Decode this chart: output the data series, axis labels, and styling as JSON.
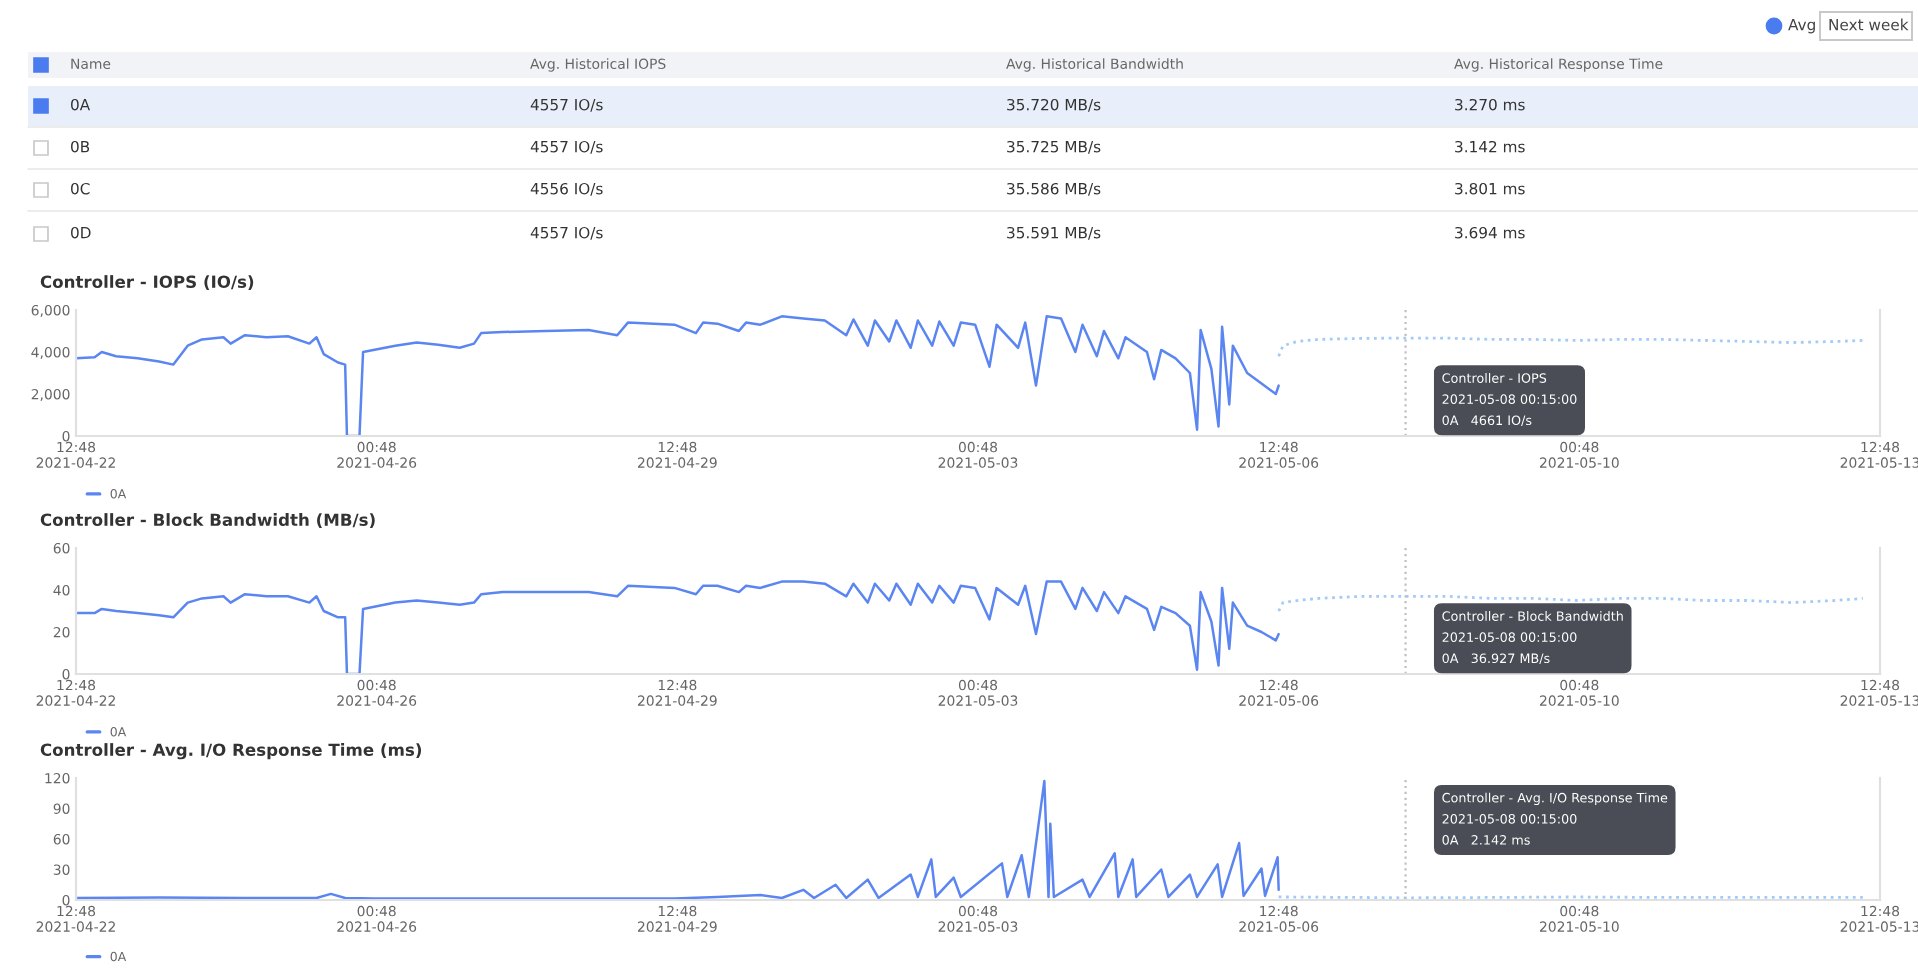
{
  "chart_data": [
    {
      "type": "other",
      "annotations": [
        "Avg",
        "Next week",
        "Name",
        "Avg. Historical IOPS",
        "Avg. Historical Bandwidth",
        "Avg. Historical Response Time",
        "0A",
        "4557 IO/s",
        "35.720 MB/s",
        "3.270 ms",
        "0B",
        "4557 IO/s",
        "35.725 MB/s",
        "3.142 ms",
        "0C",
        "4556 IO/s",
        "35.586 MB/s",
        "3.801 ms",
        "0D",
        "4557 IO/s",
        "35.591 MB/s",
        "3.694 ms"
      ]
    },
    {
      "type": "line",
      "title": "Controller - IOPS (IO/s)",
      "xlim": [
        "2021-04-22T12:48",
        "2021-05-13T12:48"
      ],
      "xticks": [
        {
          "value": "2021-04-22T12:48",
          "label": "12:48\n2021-04-22"
        },
        {
          "value": "2021-04-26T00:48",
          "label": "00:48\n2021-04-26"
        },
        {
          "value": "2021-04-29T12:48",
          "label": "12:48\n2021-04-29"
        },
        {
          "value": "2021-05-03T00:48",
          "label": "00:48\n2021-05-03"
        },
        {
          "value": "2021-05-06T12:48",
          "label": "12:48\n2021-05-06"
        },
        {
          "value": "2021-05-10T00:48",
          "label": "00:48\n2021-05-10"
        },
        {
          "value": "2021-05-13T12:48",
          "label": "12:48\n2021-05-13"
        }
      ],
      "ylim": [
        0,
        6000
      ],
      "yticks": [
        0,
        {
          "value": 2000,
          "label": "2,000"
        },
        {
          "value": 4000,
          "label": "4,000"
        },
        {
          "value": 6000,
          "label": "6,000"
        }
      ],
      "grid": false,
      "legend": "bottom left",
      "marker": "none",
      "ref_lines": [
        {
          "axis": "x",
          "value": "2021-05-08T00:15",
          "color": "#c0c0c0",
          "line_style": "dotted"
        }
      ],
      "annotations": [
        "Controller - IOPS\n2021-05-08 00:15:00\n0A   4661 IO/s"
      ],
      "series": [
        {
          "name": "0A",
          "color": "#5b86f2",
          "line_style": "solid",
          "x": [
            "2021-04-22T12:48",
            "2021-04-22T18:00",
            "2021-04-22T20:00",
            "2021-04-23T00:00",
            "2021-04-23T06:00",
            "2021-04-23T12:00",
            "2021-04-23T16:00",
            "2021-04-23T20:00",
            "2021-04-24T00:00",
            "2021-04-24T06:00",
            "2021-04-24T08:00",
            "2021-04-24T12:00",
            "2021-04-24T18:00",
            "2021-04-25T00:00",
            "2021-04-25T06:00",
            "2021-04-25T08:00",
            "2021-04-25T10:00",
            "2021-04-25T14:00",
            "2021-04-25T16:00",
            "2021-04-25T16:30",
            "2021-04-25T20:00",
            "2021-04-25T21:00",
            "2021-04-26T06:00",
            "2021-04-26T12:00",
            "2021-04-26T18:00",
            "2021-04-27T00:00",
            "2021-04-27T04:00",
            "2021-04-27T06:00",
            "2021-04-27T12:00",
            "2021-04-28T00:00",
            "2021-04-28T12:00",
            "2021-04-28T20:00",
            "2021-04-28T23:00",
            "2021-04-29T12:00",
            "2021-04-29T18:00",
            "2021-04-29T20:00",
            "2021-04-30T00:00",
            "2021-04-30T06:00",
            "2021-04-30T08:00",
            "2021-04-30T12:00",
            "2021-04-30T18:00",
            "2021-05-01T00:00",
            "2021-05-01T06:00",
            "2021-05-01T12:00",
            "2021-05-01T14:00",
            "2021-05-01T18:00",
            "2021-05-01T20:00",
            "2021-05-02T00:00",
            "2021-05-02T02:00",
            "2021-05-02T06:00",
            "2021-05-02T08:00",
            "2021-05-02T12:00",
            "2021-05-02T14:00",
            "2021-05-02T18:00",
            "2021-05-02T20:00",
            "2021-05-03T00:00",
            "2021-05-03T04:00",
            "2021-05-03T06:00",
            "2021-05-03T12:00",
            "2021-05-03T14:00",
            "2021-05-03T17:00",
            "2021-05-03T20:00",
            "2021-05-04T00:00",
            "2021-05-04T04:00",
            "2021-05-04T06:00",
            "2021-05-04T10:00",
            "2021-05-04T12:00",
            "2021-05-04T16:00",
            "2021-05-04T18:00",
            "2021-05-05T00:00",
            "2021-05-05T02:00",
            "2021-05-05T04:00",
            "2021-05-05T08:00",
            "2021-05-05T12:00",
            "2021-05-05T14:00",
            "2021-05-05T15:00",
            "2021-05-05T18:00",
            "2021-05-05T20:00",
            "2021-05-05T21:00",
            "2021-05-05T23:00",
            "2021-05-06T00:00",
            "2021-05-06T04:00",
            "2021-05-06T08:00",
            "2021-05-06T12:00",
            "2021-05-06T12:48"
          ],
          "values": [
            3700,
            3750,
            4000,
            3800,
            3700,
            3550,
            3400,
            4300,
            4600,
            4700,
            4400,
            4800,
            4700,
            4750,
            4400,
            4700,
            3900,
            3500,
            3400,
            0,
            0,
            4000,
            4300,
            4450,
            4350,
            4200,
            4400,
            4900,
            4950,
            5000,
            5050,
            4800,
            5400,
            5300,
            4900,
            5400,
            5350,
            5000,
            5400,
            5300,
            5700,
            5600,
            5500,
            4800,
            5550,
            4300,
            5500,
            4500,
            5500,
            4200,
            5500,
            4300,
            5450,
            4300,
            5400,
            5300,
            3300,
            5300,
            4200,
            5400,
            2400,
            5700,
            5600,
            4000,
            5300,
            3800,
            5000,
            3700,
            4700,
            4000,
            2700,
            4100,
            3700,
            3000,
            300,
            5050,
            3200,
            450,
            5200,
            1500,
            4300,
            3000,
            2500,
            2000,
            2400
          ]
        },
        {
          "color": "#a3cbf7",
          "line_style": "dotted",
          "x": [
            "2021-05-06T12:48",
            "2021-05-06T14:00",
            "2021-05-06T18:00",
            "2021-05-07T00:00",
            "2021-05-07T12:00",
            "2021-05-08T00:15",
            "2021-05-08T12:00",
            "2021-05-09T00:00",
            "2021-05-09T12:00",
            "2021-05-10T00:00",
            "2021-05-10T12:00",
            "2021-05-11T00:00",
            "2021-05-11T12:00",
            "2021-05-12T00:00",
            "2021-05-12T12:00",
            "2021-05-13T00:00",
            "2021-05-13T08:00"
          ],
          "values": [
            3800,
            4300,
            4500,
            4600,
            4650,
            4661,
            4660,
            4600,
            4600,
            4550,
            4600,
            4600,
            4550,
            4500,
            4450,
            4500,
            4550
          ]
        }
      ]
    },
    {
      "type": "line",
      "title": "Controller - Block Bandwidth (MB/s)",
      "xlim": [
        "2021-04-22T12:48",
        "2021-05-13T12:48"
      ],
      "xticks": [
        {
          "value": "2021-04-22T12:48",
          "label": "12:48\n2021-04-22"
        },
        {
          "value": "2021-04-26T00:48",
          "label": "00:48\n2021-04-26"
        },
        {
          "value": "2021-04-29T12:48",
          "label": "12:48\n2021-04-29"
        },
        {
          "value": "2021-05-03T00:48",
          "label": "00:48\n2021-05-03"
        },
        {
          "value": "2021-05-06T12:48",
          "label": "12:48\n2021-05-06"
        },
        {
          "value": "2021-05-10T00:48",
          "label": "00:48\n2021-05-10"
        },
        {
          "value": "2021-05-13T12:48",
          "label": "12:48\n2021-05-13"
        }
      ],
      "ylim": [
        0,
        60
      ],
      "yticks": [
        0,
        20,
        40,
        60
      ],
      "grid": false,
      "legend": "bottom left",
      "marker": "none",
      "ref_lines": [
        {
          "axis": "x",
          "value": "2021-05-08T00:15",
          "color": "#c0c0c0",
          "line_style": "dotted"
        }
      ],
      "annotations": [
        "Controller - Block Bandwidth\n2021-05-08 00:15:00\n0A   36.927 MB/s"
      ],
      "series": [
        {
          "name": "0A",
          "color": "#5b86f2",
          "line_style": "solid",
          "x": [
            "2021-04-22T12:48",
            "2021-04-22T18:00",
            "2021-04-22T20:00",
            "2021-04-23T00:00",
            "2021-04-23T06:00",
            "2021-04-23T12:00",
            "2021-04-23T16:00",
            "2021-04-23T20:00",
            "2021-04-24T00:00",
            "2021-04-24T06:00",
            "2021-04-24T08:00",
            "2021-04-24T12:00",
            "2021-04-24T18:00",
            "2021-04-25T00:00",
            "2021-04-25T06:00",
            "2021-04-25T08:00",
            "2021-04-25T10:00",
            "2021-04-25T14:00",
            "2021-04-25T16:00",
            "2021-04-25T16:30",
            "2021-04-25T20:00",
            "2021-04-25T21:00",
            "2021-04-26T06:00",
            "2021-04-26T12:00",
            "2021-04-26T18:00",
            "2021-04-27T00:00",
            "2021-04-27T04:00",
            "2021-04-27T06:00",
            "2021-04-27T12:00",
            "2021-04-28T00:00",
            "2021-04-28T12:00",
            "2021-04-28T20:00",
            "2021-04-28T23:00",
            "2021-04-29T12:00",
            "2021-04-29T18:00",
            "2021-04-29T20:00",
            "2021-04-30T00:00",
            "2021-04-30T06:00",
            "2021-04-30T08:00",
            "2021-04-30T12:00",
            "2021-04-30T18:00",
            "2021-05-01T00:00",
            "2021-05-01T06:00",
            "2021-05-01T12:00",
            "2021-05-01T14:00",
            "2021-05-01T18:00",
            "2021-05-01T20:00",
            "2021-05-02T00:00",
            "2021-05-02T02:00",
            "2021-05-02T06:00",
            "2021-05-02T08:00",
            "2021-05-02T12:00",
            "2021-05-02T14:00",
            "2021-05-02T18:00",
            "2021-05-02T20:00",
            "2021-05-03T00:00",
            "2021-05-03T04:00",
            "2021-05-03T06:00",
            "2021-05-03T12:00",
            "2021-05-03T14:00",
            "2021-05-03T17:00",
            "2021-05-03T20:00",
            "2021-05-04T00:00",
            "2021-05-04T04:00",
            "2021-05-04T06:00",
            "2021-05-04T10:00",
            "2021-05-04T12:00",
            "2021-05-04T16:00",
            "2021-05-04T18:00",
            "2021-05-05T00:00",
            "2021-05-05T02:00",
            "2021-05-05T04:00",
            "2021-05-05T08:00",
            "2021-05-05T12:00",
            "2021-05-05T14:00",
            "2021-05-05T15:00",
            "2021-05-05T18:00",
            "2021-05-05T20:00",
            "2021-05-05T21:00",
            "2021-05-05T23:00",
            "2021-05-06T00:00",
            "2021-05-06T04:00",
            "2021-05-06T08:00",
            "2021-05-06T12:00",
            "2021-05-06T12:48"
          ],
          "values": [
            29,
            29,
            31,
            30,
            29,
            28,
            27,
            34,
            36,
            37,
            34,
            38,
            37,
            37,
            34,
            37,
            30,
            27,
            27,
            0,
            0,
            31,
            34,
            35,
            34,
            33,
            34,
            38,
            39,
            39,
            39,
            37,
            42,
            41,
            38,
            42,
            42,
            39,
            42,
            41,
            44,
            44,
            43,
            37,
            43,
            34,
            43,
            35,
            43,
            33,
            43,
            34,
            42,
            34,
            42,
            41,
            26,
            41,
            33,
            42,
            19,
            44,
            44,
            31,
            41,
            30,
            39,
            29,
            37,
            31,
            21,
            32,
            29,
            23,
            2,
            39,
            25,
            4,
            41,
            12,
            34,
            23,
            20,
            16,
            19
          ]
        },
        {
          "color": "#a3cbf7",
          "line_style": "dotted",
          "x": [
            "2021-05-06T12:48",
            "2021-05-06T14:00",
            "2021-05-06T18:00",
            "2021-05-07T00:00",
            "2021-05-07T12:00",
            "2021-05-08T00:15",
            "2021-05-08T12:00",
            "2021-05-09T00:00",
            "2021-05-09T12:00",
            "2021-05-10T00:00",
            "2021-05-10T12:00",
            "2021-05-11T00:00",
            "2021-05-11T12:00",
            "2021-05-12T00:00",
            "2021-05-12T12:00",
            "2021-05-13T00:00",
            "2021-05-13T08:00"
          ],
          "values": [
            30,
            34,
            35,
            36,
            37,
            36.927,
            37,
            36,
            36,
            35,
            36,
            36,
            35,
            35,
            34,
            35,
            36
          ]
        }
      ]
    },
    {
      "type": "line",
      "title": "Controller - Avg. I/O Response Time (ms)",
      "xlim": [
        "2021-04-22T12:48",
        "2021-05-13T12:48"
      ],
      "xticks": [
        {
          "value": "2021-04-22T12:48",
          "label": "12:48\n2021-04-22"
        },
        {
          "value": "2021-04-26T00:48",
          "label": "00:48\n2021-04-26"
        },
        {
          "value": "2021-04-29T12:48",
          "label": "12:48\n2021-04-29"
        },
        {
          "value": "2021-05-03T00:48",
          "label": "00:48\n2021-05-03"
        },
        {
          "value": "2021-05-06T12:48",
          "label": "12:48\n2021-05-06"
        },
        {
          "value": "2021-05-10T00:48",
          "label": "00:48\n2021-05-10"
        },
        {
          "value": "2021-05-13T12:48",
          "label": "12:48\n2021-05-13"
        }
      ],
      "ylim": [
        0,
        120
      ],
      "yticks": [
        0,
        30,
        60,
        90,
        120
      ],
      "grid": false,
      "legend": "bottom left",
      "marker": "none",
      "ref_lines": [
        {
          "axis": "x",
          "value": "2021-05-08T00:15",
          "color": "#c0c0c0",
          "line_style": "dotted"
        }
      ],
      "annotations": [
        "Controller - Avg. I/O Response Time\n2021-05-08 00:15:00\n0A   2.142 ms"
      ],
      "series": [
        {
          "name": "0A",
          "color": "#5b86f2",
          "line_style": "solid",
          "x": [
            "2021-04-22T12:48",
            "2021-04-23T12:00",
            "2021-04-24T12:00",
            "2021-04-25T08:00",
            "2021-04-25T12:00",
            "2021-04-25T16:00",
            "2021-04-26T00:00",
            "2021-04-28T00:00",
            "2021-04-29T12:00",
            "2021-04-30T00:00",
            "2021-04-30T12:00",
            "2021-04-30T18:00",
            "2021-05-01T00:00",
            "2021-05-01T03:00",
            "2021-05-01T09:00",
            "2021-05-01T12:00",
            "2021-05-01T18:00",
            "2021-05-01T21:00",
            "2021-05-02T06:00",
            "2021-05-02T08:00",
            "2021-05-02T11:45",
            "2021-05-02T13:00",
            "2021-05-02T18:00",
            "2021-05-02T20:00",
            "2021-05-03T07:30",
            "2021-05-03T09:00",
            "2021-05-03T13:00",
            "2021-05-03T15:00",
            "2021-05-03T19:20",
            "2021-05-03T20:30",
            "2021-05-03T21:00",
            "2021-05-03T22:00",
            "2021-05-04T06:00",
            "2021-05-04T08:00",
            "2021-05-04T15:00",
            "2021-05-04T16:00",
            "2021-05-04T20:00",
            "2021-05-04T21:00",
            "2021-05-05T04:00",
            "2021-05-05T06:00",
            "2021-05-05T12:00",
            "2021-05-05T14:00",
            "2021-05-05T19:45",
            "2021-05-05T21:00",
            "2021-05-06T01:45",
            "2021-05-06T03:00",
            "2021-05-06T08:00",
            "2021-05-06T09:00",
            "2021-05-06T12:30",
            "2021-05-06T12:48"
          ],
          "values": [
            2,
            2.5,
            2,
            2,
            6,
            2,
            1.5,
            1.5,
            1.5,
            3,
            5,
            2,
            10,
            2,
            15,
            2,
            20,
            2,
            25,
            3,
            40,
            3,
            22,
            3,
            36,
            3,
            44,
            3,
            117,
            3,
            75,
            3,
            20,
            3,
            46,
            3,
            40,
            3,
            30,
            3,
            25,
            3,
            35,
            3,
            56,
            4,
            31,
            4,
            42,
            10
          ]
        },
        {
          "color": "#a3cbf7",
          "line_style": "dotted",
          "x": [
            "2021-05-06T12:48",
            "2021-05-07T12:00",
            "2021-05-08T00:15",
            "2021-05-09T00:00",
            "2021-05-10T00:00",
            "2021-05-11T00:00",
            "2021-05-12T00:00",
            "2021-05-13T08:00"
          ],
          "values": [
            3,
            2.5,
            2.142,
            2.5,
            3,
            2.5,
            2.5,
            2.5
          ]
        }
      ]
    }
  ]
}
